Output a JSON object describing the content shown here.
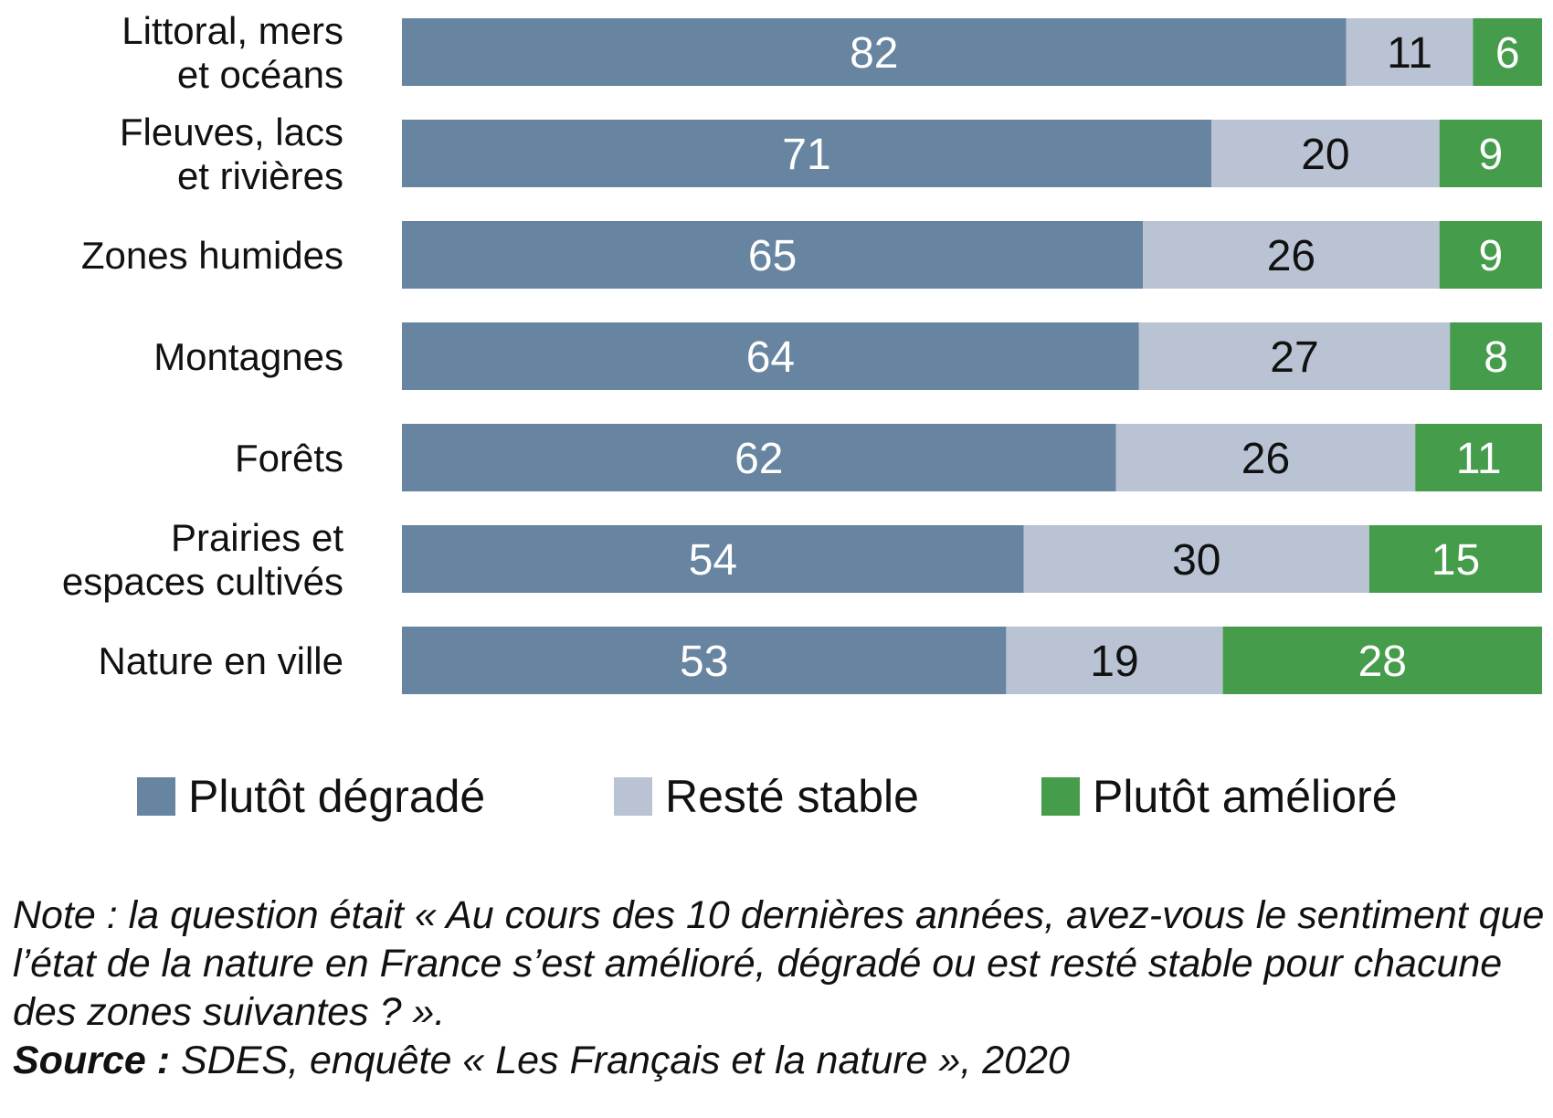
{
  "chart_data": {
    "type": "bar",
    "orientation": "horizontal",
    "stacked": true,
    "unit": "%",
    "categories": [
      [
        "Littoral, mers",
        "et océans"
      ],
      [
        "Fleuves, lacs",
        "et rivières"
      ],
      [
        "Zones humides"
      ],
      [
        "Montagnes"
      ],
      [
        "Forêts"
      ],
      [
        "Prairies et",
        "espaces cultivés"
      ],
      [
        "Nature en ville"
      ]
    ],
    "series": [
      {
        "name": "Plutôt dégradé",
        "color": "#6784a0",
        "label_color": "#ffffff",
        "values": [
          82,
          71,
          65,
          64,
          62,
          54,
          53
        ]
      },
      {
        "name": "Resté stable",
        "color": "#b9c3d3",
        "label_color": "#111111",
        "values": [
          11,
          20,
          26,
          27,
          26,
          30,
          19
        ]
      },
      {
        "name": "Plutôt amélioré",
        "color": "#459c4b",
        "label_color": "#ffffff",
        "values": [
          6,
          9,
          9,
          8,
          11,
          15,
          28
        ]
      }
    ],
    "legend_position": "bottom",
    "grid": false
  },
  "note": {
    "text": "Note : la question était « Au cours des 10 dernières années, avez-vous le sentiment que l’état de la nature en France s’est amélioré, dégradé ou est resté stable pour chacune des zones suivantes ? ».",
    "source_label": "Source :",
    "source_text": " SDES, enquête « Les Français et la nature », 2020"
  }
}
